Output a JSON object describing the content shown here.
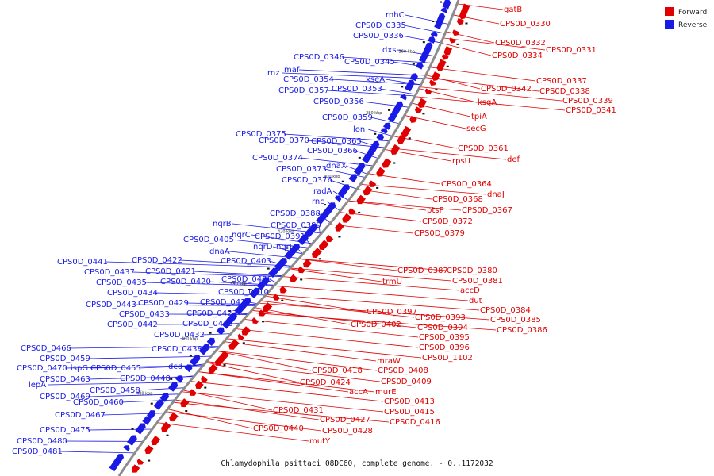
{
  "caption": "Chlamydophila psittaci 08DC60, complete genome. - 0..1172032",
  "legend": [
    {
      "label": "Forward",
      "color": "#e00000"
    },
    {
      "label": "Reverse",
      "color": "#1a1ae6"
    }
  ],
  "scale_ticks": [
    "340 kbp",
    "360 kbp",
    "380 kbp",
    "400 kbp",
    "420 kbp",
    "440 kbp",
    "460 kbp",
    "480 kbp"
  ],
  "forward_genes": [
    "gatB",
    "CPS0D_0330",
    "CPS0D_0332",
    "CPS0D_0331",
    "CPS0D_0334",
    "CPS0D_0337",
    "CPS0D_0342",
    "CPS0D_0338",
    "CPS0D_0339",
    "ksgA",
    "CPS0D_0341",
    "tpiA",
    "secG",
    "CPS0D_0361",
    "def",
    "rpsU",
    "CPS0D_0364",
    "dnaJ",
    "CPS0D_0368",
    "ptsP",
    "CPS0D_0367",
    "CPS0D_0372",
    "CPS0D_0379",
    "CPS0D_0387",
    "CPS0D_0380",
    "CPS0D_0381",
    "trmU",
    "accD",
    "dut",
    "CPS0D_0384",
    "CPS0D_0397",
    "CPS0D_0393",
    "CPS0D_0385",
    "CPS0D_0402",
    "CPS0D_0394",
    "CPS0D_0386",
    "CPS0D_0395",
    "CPS0D_0396",
    "CPS0D_1102",
    "mraW",
    "CPS0D_0418",
    "CPS0D_0408",
    "CPS0D_0424",
    "CPS0D_0409",
    "accA",
    "murE",
    "CPS0D_0413",
    "CPS0D_0431",
    "CPS0D_0415",
    "CPS0D_0427",
    "CPS0D_0416",
    "CPS0D_0440",
    "CPS0D_0428",
    "mutY"
  ],
  "reverse_genes": [
    "rnhC",
    "CPS0D_0335",
    "CPS0D_0336",
    "dxs",
    "CPS0D_0346",
    "CPS0D_0345",
    "rnz",
    "maf",
    "xseA",
    "CPS0D_0354",
    "CPS0D_0353",
    "CPS0D_0357",
    "CPS0D_0356",
    "CPS0D_0359",
    "lon",
    "CPS0D_0375",
    "CPS0D_0370",
    "CPS0D_0365",
    "CPS0D_0366",
    "CPS0D_0374",
    "dnaX",
    "CPS0D_0373",
    "CPS0D_0376",
    "radA",
    "rnc",
    "CPS0D_0388",
    "CPS0D_0389",
    "nqrB",
    "nqrC",
    "CPS0D_0391",
    "CPS0D_0405",
    "nqrD",
    "nqrE",
    "dnaA",
    "CPS0D_0441",
    "CPS0D_0422",
    "CPS0D_0403",
    "CPS0D_0437",
    "CPS0D_0421",
    "CPS0D_0435",
    "CPS0D_0420",
    "CPS0D_0406",
    "CPS0D_0434",
    "CPS0D_0410",
    "CPS0D_0443",
    "CPS0D_0429",
    "CPS0D_0419",
    "CPS0D_0433",
    "CPS0D_0423",
    "CPS0D_0442",
    "CPS0D_0425",
    "CPS0D_0432",
    "CPS0D_0466",
    "CPS0D_0438",
    "CPS0D_0459",
    "dcd",
    "CPS0D_0470",
    "ispG",
    "CPS0D_0455",
    "CPS0D_0463",
    "CPS0D_0448",
    "lepA",
    "CPS0D_0458",
    "CPS0D_0469",
    "CPS0D_0460",
    "CPS0D_0467",
    "CPS0D_0475",
    "CPS0D_0480",
    "CPS0D_0481"
  ]
}
